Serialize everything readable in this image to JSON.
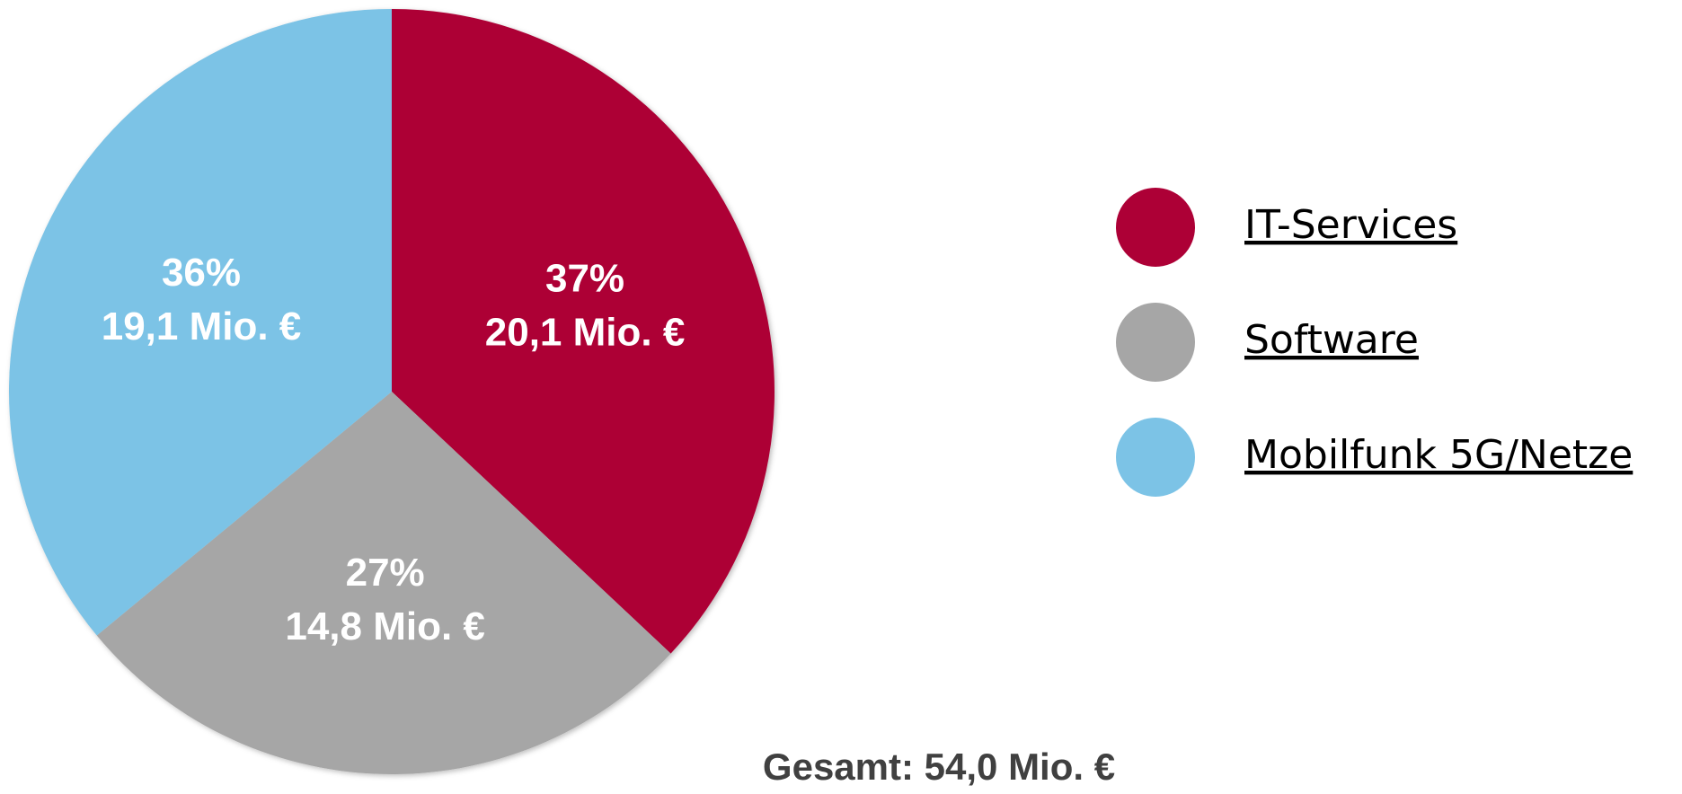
{
  "chart_data": {
    "type": "pie",
    "categories": [
      "IT-Services",
      "Software",
      "Mobilfunk 5G/Netze"
    ],
    "values": [
      37,
      27,
      36
    ],
    "value_labels": [
      "37%",
      "27%",
      "36%"
    ],
    "amounts": [
      20.1,
      14.8,
      19.1
    ],
    "amount_labels": [
      "20,1 Mio. €",
      "14,8 Mio. €",
      "19,1 Mio. €"
    ],
    "colors": [
      "#ad0036",
      "#a6a6a6",
      "#7cc3e6"
    ],
    "total_label": "Gesamt: 54,0 Mio. €"
  }
}
